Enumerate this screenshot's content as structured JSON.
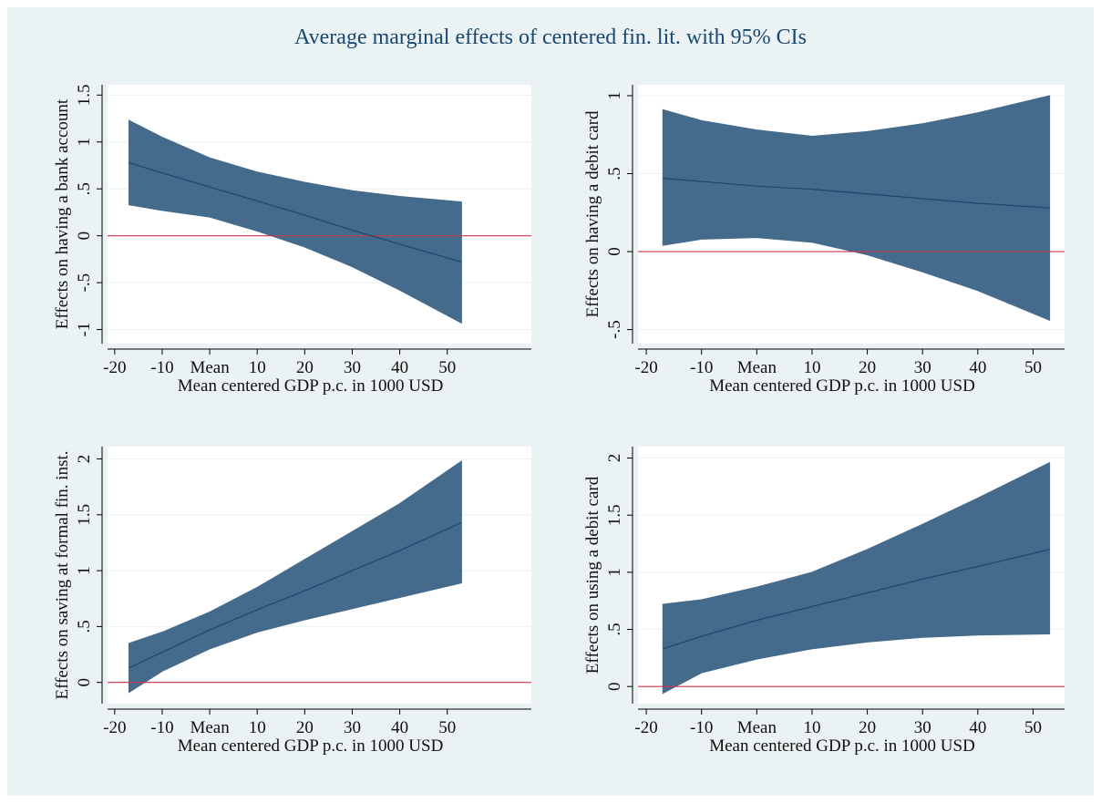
{
  "title": "Average marginal effects of centered fin. lit. with 95% CIs",
  "chart_data": [
    {
      "type": "line",
      "y_label": "Effects on having a bank account",
      "x_label": "Mean centered GDP p.c. in 1000 USD",
      "x": [
        -17,
        -10,
        0,
        10,
        20,
        30,
        40,
        53
      ],
      "values": [
        0.78,
        0.67,
        0.52,
        0.37,
        0.22,
        0.06,
        -0.09,
        -0.28
      ],
      "ci_upper": [
        1.23,
        1.05,
        0.83,
        0.68,
        0.57,
        0.48,
        0.42,
        0.36
      ],
      "ci_lower": [
        0.33,
        0.27,
        0.2,
        0.05,
        -0.12,
        -0.33,
        -0.58,
        -0.93
      ],
      "color": "#1a476f",
      "band_color": "#456b8c",
      "hline": 0,
      "hline_color": "#c8374d",
      "xlim": [
        -21.5,
        67.7
      ],
      "xticks": [
        -20,
        -10,
        {
          "value": 0,
          "label": "Mean"
        },
        10,
        20,
        30,
        40,
        50
      ],
      "ylim": [
        -1.15,
        1.61
      ],
      "yticks": [
        -1,
        {
          "value": -0.5,
          "label": "-.5"
        },
        0,
        {
          "value": 0.5,
          "label": ".5"
        },
        1,
        1.5
      ],
      "grid": true
    },
    {
      "type": "line",
      "y_label": "Effects on having a debit card",
      "x_label": "Mean centered GDP p.c. in 1000 USD",
      "x": [
        -17,
        -10,
        0,
        10,
        20,
        30,
        40,
        53
      ],
      "values": [
        0.47,
        0.45,
        0.42,
        0.4,
        0.37,
        0.34,
        0.31,
        0.28
      ],
      "ci_upper": [
        0.91,
        0.84,
        0.78,
        0.74,
        0.77,
        0.82,
        0.89,
        1.0
      ],
      "ci_lower": [
        0.04,
        0.08,
        0.09,
        0.06,
        -0.02,
        -0.13,
        -0.25,
        -0.44
      ],
      "color": "#1a476f",
      "band_color": "#456b8c",
      "hline": 0,
      "hline_color": "#c8374d",
      "xlim": [
        -21.5,
        55.7
      ],
      "xticks": [
        -20,
        -10,
        {
          "value": 0,
          "label": "Mean"
        },
        10,
        20,
        30,
        40,
        50
      ],
      "ylim": [
        -0.59,
        1.07
      ],
      "yticks": [
        {
          "value": -0.5,
          "label": "-.5"
        },
        0,
        {
          "value": 0.5,
          "label": ".5"
        },
        1
      ],
      "grid": true
    },
    {
      "type": "line",
      "y_label": "Effects on saving at formal fin. inst.",
      "x_label": "Mean centered GDP p.c. in 1000 USD",
      "x": [
        -17,
        -10,
        0,
        10,
        20,
        30,
        40,
        53
      ],
      "values": [
        0.13,
        0.27,
        0.47,
        0.65,
        0.82,
        1.0,
        1.18,
        1.43
      ],
      "ci_upper": [
        0.35,
        0.45,
        0.63,
        0.85,
        1.1,
        1.35,
        1.6,
        1.98
      ],
      "ci_lower": [
        -0.09,
        0.1,
        0.3,
        0.45,
        0.56,
        0.66,
        0.76,
        0.89
      ],
      "color": "#1a476f",
      "band_color": "#456b8c",
      "hline": 0,
      "hline_color": "#c8374d",
      "xlim": [
        -21.5,
        67.7
      ],
      "xticks": [
        -20,
        -10,
        {
          "value": 0,
          "label": "Mean"
        },
        10,
        20,
        30,
        40,
        50
      ],
      "ylim": [
        -0.19,
        2.11
      ],
      "yticks": [
        0,
        {
          "value": 0.5,
          "label": ".5"
        },
        1,
        1.5,
        2
      ],
      "grid": true
    },
    {
      "type": "line",
      "y_label": "Effects on using a debit card",
      "x_label": "Mean centered GDP p.c. in 1000 USD",
      "x": [
        -17,
        -10,
        0,
        10,
        20,
        30,
        40,
        53
      ],
      "values": [
        0.33,
        0.44,
        0.58,
        0.7,
        0.82,
        0.94,
        1.05,
        1.2
      ],
      "ci_upper": [
        0.72,
        0.76,
        0.87,
        1.0,
        1.2,
        1.42,
        1.65,
        1.96
      ],
      "ci_lower": [
        -0.06,
        0.12,
        0.24,
        0.33,
        0.39,
        0.43,
        0.45,
        0.46
      ],
      "color": "#1a476f",
      "band_color": "#456b8c",
      "hline": 0,
      "hline_color": "#c8374d",
      "xlim": [
        -21.5,
        55.7
      ],
      "xticks": [
        -20,
        -10,
        {
          "value": 0,
          "label": "Mean"
        },
        10,
        20,
        30,
        40,
        50
      ],
      "ylim": [
        -0.15,
        2.1
      ],
      "yticks": [
        0,
        {
          "value": 0.5,
          "label": ".5"
        },
        1,
        1.5,
        2
      ],
      "grid": true
    }
  ]
}
